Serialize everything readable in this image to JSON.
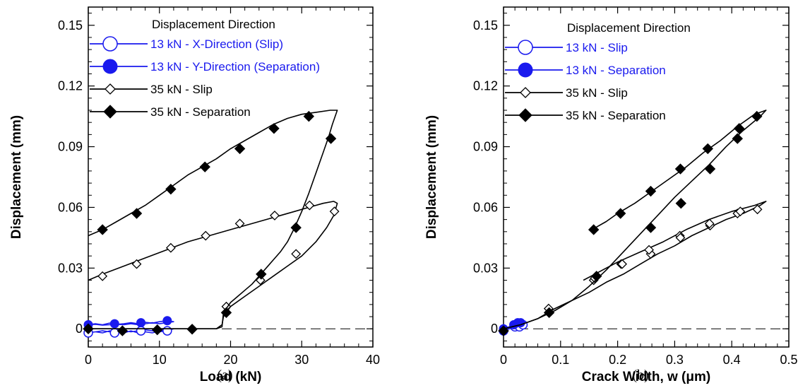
{
  "colors": {
    "blue": "#1a1aee",
    "black": "#000000"
  },
  "chart_data": [
    {
      "type": "line",
      "caption": "(a)",
      "xlabel": "Load (kN)",
      "ylabel": "Displacement (mm)",
      "xlim": [
        0,
        40
      ],
      "ylim": [
        -0.009,
        0.159
      ],
      "xticks": [
        0,
        10,
        20,
        30,
        40
      ],
      "xtick_labels": [
        "0",
        "10",
        "20",
        "30",
        "40"
      ],
      "yticks": [
        0,
        0.03,
        0.06,
        0.09,
        0.12,
        0.15
      ],
      "ytick_labels": [
        "0",
        "0.03",
        "0.06",
        "0.09",
        "0.12",
        "0.15"
      ],
      "grid": false,
      "zero_line": "dashed",
      "legend": {
        "title": "Displacement Direction",
        "placement": "top-left",
        "entries": [
          "13 kN - X-Direction (Slip)",
          "13 kN - Y-Direction (Separation)",
          "35 kN - Slip",
          "35 kN - Separation"
        ]
      },
      "series": [
        {
          "name": "13 kN - X-Direction (Slip)",
          "color": "#1a1aee",
          "marker": "open-circle",
          "x": [
            0,
            1,
            2,
            3,
            4,
            5,
            6,
            7,
            8,
            9,
            10,
            11,
            12,
            11,
            10,
            9,
            8,
            7,
            6,
            5,
            4,
            3,
            2,
            1,
            0
          ],
          "y": [
            -0.002,
            -0.0015,
            -0.001,
            -0.0015,
            -0.002,
            -0.001,
            -0.0015,
            -0.001,
            -0.0005,
            -0.001,
            -0.0015,
            -0.001,
            0,
            -0.0005,
            -0.001,
            -0.002,
            -0.0015,
            -0.002,
            -0.001,
            -0.002,
            -0.0015,
            -0.001,
            -0.002,
            -0.0015,
            -0.002
          ],
          "markers_x": [
            0,
            3.7,
            7.4,
            11.1
          ],
          "markers_y": [
            -0.002,
            -0.002,
            -0.001,
            -0.001
          ]
        },
        {
          "name": "13 kN - Y-Direction (Separation)",
          "color": "#1a1aee",
          "marker": "filled-circle",
          "x": [
            0,
            1,
            2,
            3,
            4,
            5,
            6,
            7,
            8,
            9,
            10,
            11,
            12,
            11,
            10,
            9,
            8,
            7,
            6,
            5,
            4,
            3,
            2,
            1,
            0
          ],
          "y": [
            0.002,
            0.0025,
            0.002,
            0.0028,
            0.0022,
            0.0025,
            0.003,
            0.0025,
            0.0032,
            0.0028,
            0.0035,
            0.004,
            0.0035,
            0.003,
            0.0025,
            0.003,
            0.0025,
            0.002,
            0.0025,
            0.002,
            0.0022,
            0.002,
            0.0018,
            0.0022,
            0.002
          ],
          "markers_x": [
            0,
            3.7,
            7.4,
            11.1
          ],
          "markers_y": [
            0.002,
            0.0025,
            0.003,
            0.004
          ]
        },
        {
          "name": "35 kN - Slip",
          "color": "#000000",
          "marker": "open-diamond",
          "x": [
            0,
            2,
            4,
            6,
            8,
            10,
            12,
            14,
            16,
            18,
            18.8,
            19,
            20,
            22,
            24,
            26,
            28,
            30,
            32,
            33.5,
            34.5,
            35,
            34.5,
            33,
            31,
            29,
            26,
            23,
            20,
            17,
            14,
            11,
            8,
            5,
            2,
            0
          ],
          "y": [
            0,
            0,
            0,
            0,
            0,
            0,
            0,
            0,
            0,
            0,
            0.002,
            0.006,
            0.011,
            0.016,
            0.021,
            0.026,
            0.031,
            0.036,
            0.043,
            0.05,
            0.056,
            0.062,
            0.063,
            0.062,
            0.06,
            0.058,
            0.055,
            0.052,
            0.049,
            0.046,
            0.043,
            0.039,
            0.035,
            0.031,
            0.027,
            0.024
          ],
          "markers_x": [
            0,
            4.8,
            9.7,
            14.6,
            19.4,
            24.2,
            29.2,
            34.6,
            31.1,
            26.2,
            21.3,
            16.5,
            11.6,
            6.8,
            2.0
          ],
          "markers_y": [
            0,
            -0.001,
            -0.0005,
            0,
            0.011,
            0.024,
            0.037,
            0.058,
            0.061,
            0.056,
            0.052,
            0.046,
            0.04,
            0.032,
            0.026
          ]
        },
        {
          "name": "35 kN - Separation",
          "color": "#000000",
          "marker": "filled-diamond",
          "x": [
            0,
            2,
            4,
            6,
            8,
            10,
            12,
            14,
            16,
            18,
            18.8,
            19,
            20,
            21,
            22,
            23,
            24,
            25,
            26,
            27,
            28,
            29,
            30,
            31,
            32,
            33,
            33.8,
            34.3,
            34.8,
            35,
            34.8,
            34,
            32,
            30,
            28,
            26,
            24,
            22,
            20,
            18,
            16,
            14,
            12,
            10,
            8,
            6,
            4,
            2,
            0
          ],
          "y": [
            0,
            0,
            0,
            0,
            0,
            0,
            0,
            0,
            0,
            0,
            0.001,
            0.008,
            0.013,
            0.016,
            0.019,
            0.022,
            0.026,
            0.03,
            0.034,
            0.038,
            0.043,
            0.05,
            0.058,
            0.067,
            0.077,
            0.087,
            0.095,
            0.101,
            0.106,
            0.108,
            0.108,
            0.108,
            0.107,
            0.106,
            0.104,
            0.101,
            0.097,
            0.093,
            0.089,
            0.084,
            0.08,
            0.076,
            0.071,
            0.066,
            0.061,
            0.057,
            0.053,
            0.049,
            0.046
          ],
          "markers_x": [
            0,
            4.8,
            9.7,
            14.6,
            19.4,
            24.3,
            29.2,
            34.1,
            31,
            26.1,
            21.3,
            16.4,
            11.6,
            6.8,
            2.0
          ],
          "markers_y": [
            0,
            -0.001,
            -0.0005,
            -0.0002,
            0.008,
            0.027,
            0.05,
            0.094,
            0.105,
            0.099,
            0.089,
            0.08,
            0.069,
            0.057,
            0.049
          ]
        }
      ]
    },
    {
      "type": "line",
      "caption": "(b)",
      "xlabel": "Crack Width, w (μm)",
      "ylabel": "Displacement (mm)",
      "xlim": [
        0,
        0.5
      ],
      "ylim": [
        -0.009,
        0.159
      ],
      "xticks": [
        0,
        0.1,
        0.2,
        0.3,
        0.4,
        0.5
      ],
      "xtick_labels": [
        "0",
        "0.1",
        "0.2",
        "0.3",
        "0.4",
        "0.5"
      ],
      "yticks": [
        0,
        0.03,
        0.06,
        0.09,
        0.12,
        0.15
      ],
      "ytick_labels": [
        "0",
        "0.03",
        "0.06",
        "0.09",
        "0.12",
        "0.15"
      ],
      "grid": false,
      "zero_line": "dashed",
      "legend": {
        "title": "Displacement Direction",
        "placement": "top-left",
        "entries": [
          "13 kN - Slip",
          "13 kN - Separation",
          "35 kN - Slip",
          "35 kN - Separation"
        ]
      },
      "series": [
        {
          "name": "13 kN - Slip",
          "color": "#1a1aee",
          "marker": "open-circle",
          "x": [
            0,
            0.01,
            0.02,
            0.03,
            0.035
          ],
          "y": [
            -0.001,
            0,
            0.001,
            0.001,
            0.002
          ],
          "markers_x": [
            0,
            0.02,
            0.028,
            0.034
          ],
          "markers_y": [
            -0.001,
            0.001,
            0.001,
            0.002
          ]
        },
        {
          "name": "13 kN - Separation",
          "color": "#1a1aee",
          "marker": "filled-circle",
          "x": [
            0,
            0.01,
            0.02,
            0.03
          ],
          "y": [
            0,
            0.001,
            0.002,
            0.003
          ],
          "markers_x": [
            0,
            0.018,
            0.025,
            0.03
          ],
          "markers_y": [
            0,
            0.002,
            0.003,
            0.003
          ]
        },
        {
          "name": "35 kN - Slip",
          "color": "#000000",
          "marker": "open-diamond",
          "x": [
            0,
            0.03,
            0.06,
            0.09,
            0.12,
            0.15,
            0.18,
            0.21,
            0.24,
            0.27,
            0.3,
            0.33,
            0.36,
            0.39,
            0.42,
            0.45,
            0.46,
            0.44,
            0.4,
            0.36,
            0.32,
            0.28,
            0.24,
            0.2,
            0.16,
            0.14
          ],
          "y": [
            0,
            0.002,
            0.005,
            0.01,
            0.014,
            0.018,
            0.023,
            0.027,
            0.032,
            0.037,
            0.041,
            0.046,
            0.05,
            0.054,
            0.057,
            0.061,
            0.063,
            0.061,
            0.058,
            0.054,
            0.049,
            0.043,
            0.038,
            0.033,
            0.027,
            0.024
          ],
          "markers_x": [
            0,
            0.079,
            0.158,
            0.206,
            0.258,
            0.309,
            0.362,
            0.41,
            0.445,
            0.415,
            0.361,
            0.31,
            0.255,
            0.208,
            0.16
          ],
          "markers_y": [
            -0.001,
            0.01,
            0.024,
            0.032,
            0.037,
            0.046,
            0.051,
            0.057,
            0.059,
            0.058,
            0.052,
            0.045,
            0.039,
            0.032,
            0.025
          ]
        },
        {
          "name": "35 kN - Separation",
          "color": "#000000",
          "marker": "filled-diamond",
          "x": [
            0,
            0.03,
            0.06,
            0.09,
            0.12,
            0.15,
            0.18,
            0.21,
            0.24,
            0.27,
            0.3,
            0.33,
            0.36,
            0.39,
            0.42,
            0.45,
            0.46,
            0.44,
            0.41,
            0.38,
            0.35,
            0.32,
            0.29,
            0.26,
            0.23,
            0.2,
            0.18,
            0.155
          ],
          "y": [
            0,
            0.002,
            0.005,
            0.009,
            0.014,
            0.021,
            0.029,
            0.038,
            0.047,
            0.056,
            0.065,
            0.073,
            0.081,
            0.09,
            0.098,
            0.105,
            0.108,
            0.106,
            0.1,
            0.093,
            0.087,
            0.08,
            0.074,
            0.068,
            0.062,
            0.057,
            0.053,
            0.049
          ],
          "markers_x": [
            0,
            0.08,
            0.163,
            0.258,
            0.311,
            0.362,
            0.41,
            0.444,
            0.413,
            0.358,
            0.31,
            0.258,
            0.205,
            0.158
          ],
          "markers_y": [
            -0.001,
            0.008,
            0.026,
            0.05,
            0.062,
            0.079,
            0.094,
            0.105,
            0.099,
            0.089,
            0.079,
            0.068,
            0.057,
            0.049
          ]
        }
      ]
    }
  ]
}
